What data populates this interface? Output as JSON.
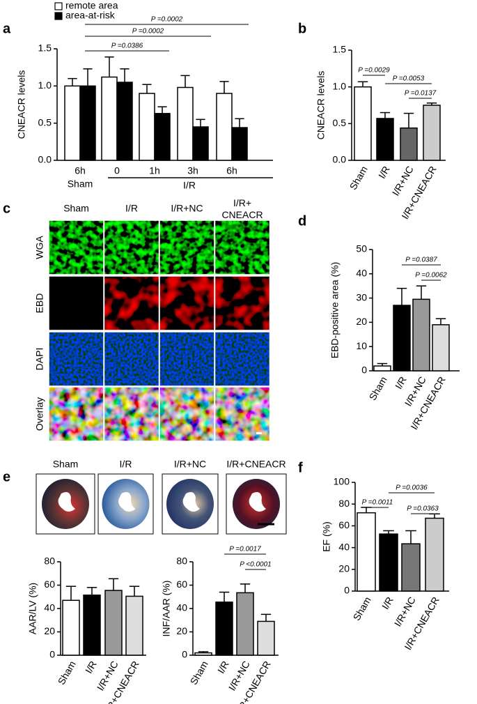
{
  "panel_letters": [
    "a",
    "b",
    "c",
    "d",
    "e",
    "f"
  ],
  "micrographs": {
    "columns": [
      "Sham",
      "I/R",
      "I/R+NC",
      "I/R+\nCNEACR"
    ],
    "rows": [
      "WGA",
      "EBD",
      "DAPI",
      "Overlay"
    ]
  },
  "hearts": {
    "labels": [
      "Sham",
      "I/R",
      "I/R+NC",
      "I/R+CNEACR"
    ]
  },
  "chart_data": [
    {
      "type": "grouped_bar",
      "ylabel": "CNEACR levels",
      "categories": [
        "6h",
        "0",
        "1h",
        "3h",
        "6h"
      ],
      "group_labels": [
        "Sham",
        "I/R"
      ],
      "series": [
        {
          "name": "remote area",
          "color": "#ffffff",
          "values": [
            1.0,
            1.12,
            0.9,
            0.98,
            0.9
          ],
          "errors": [
            0.1,
            0.27,
            0.12,
            0.16,
            0.16
          ]
        },
        {
          "name": "area-at-risk",
          "color": "#000000",
          "values": [
            1.0,
            1.05,
            0.63,
            0.45,
            0.44
          ],
          "errors": [
            0.23,
            0.18,
            0.09,
            0.1,
            0.12
          ]
        }
      ],
      "ylim": [
        0,
        1.5
      ],
      "yticks": [
        {
          "value": 0,
          "label": "0.0"
        },
        0.5,
        {
          "value": 1,
          "label": "1.0"
        },
        1.5
      ],
      "annotations": [
        "P =0.0386",
        "P =0.0002",
        "P =0.0002"
      ]
    },
    {
      "type": "bar",
      "ylabel": "CNEACR levels",
      "categories": [
        "Sham",
        "I/R",
        "I/R+NC",
        "I/R+CNEACR"
      ],
      "values": [
        1.0,
        0.57,
        0.44,
        0.75
      ],
      "errors": [
        0.07,
        0.08,
        0.2,
        0.03
      ],
      "colors": [
        "#ffffff",
        "#000000",
        "#666666",
        "#cccccc"
      ],
      "ylim": [
        0,
        1.5
      ],
      "yticks": [
        {
          "value": 0,
          "label": "0.0"
        },
        0.5,
        {
          "value": 1,
          "label": "1.0"
        },
        1.5
      ],
      "annotations": [
        "P =0.0029",
        "P =0.0053",
        "P =0.0137"
      ]
    },
    {
      "type": "bar",
      "ylabel": "EBD-positive area (%)",
      "categories": [
        "Sham",
        "I/R",
        "I/R+NC",
        "I/R+CNEACR"
      ],
      "values": [
        2,
        27,
        29.5,
        19
      ],
      "errors": [
        1,
        7,
        5.5,
        2.5
      ],
      "colors": [
        "#ffffff",
        "#000000",
        "#999999",
        "#dddddd"
      ],
      "ylim": [
        0,
        50
      ],
      "yticks": [
        0,
        10,
        20,
        30,
        40,
        50
      ],
      "annotations": [
        "P =0.0387",
        "P =0.0062"
      ]
    },
    {
      "type": "bar",
      "ylabel": "AAR/LV (%)",
      "categories": [
        "Sham",
        "I/R",
        "I/R+NC",
        "I/R+CNEACR"
      ],
      "values": [
        47,
        51.5,
        55.5,
        50.5
      ],
      "errors": [
        12,
        6.5,
        10,
        8.5
      ],
      "colors": [
        "#ffffff",
        "#000000",
        "#999999",
        "#dddddd"
      ],
      "ylim": [
        0,
        80
      ],
      "yticks": [
        0,
        20,
        40,
        60,
        80
      ],
      "annotations": []
    },
    {
      "type": "bar",
      "ylabel": "INF/AAR (%)",
      "categories": [
        "Sham",
        "I/R",
        "I/R+NC",
        "I/R+CNEACR"
      ],
      "values": [
        2,
        45.5,
        53.5,
        29
      ],
      "errors": [
        1,
        8.5,
        7.5,
        6
      ],
      "colors": [
        "#ffffff",
        "#000000",
        "#999999",
        "#dddddd"
      ],
      "ylim": [
        0,
        80
      ],
      "yticks": [
        0,
        20,
        40,
        60,
        80
      ],
      "annotations": [
        "P =0.0017",
        "P <0.0001"
      ]
    },
    {
      "type": "bar",
      "ylabel": "EF (%)",
      "categories": [
        "Sham",
        "I/R",
        "I/R+NC",
        "I/R+CNEACR"
      ],
      "values": [
        72,
        52.5,
        43.5,
        67
      ],
      "errors": [
        5,
        3,
        12,
        4
      ],
      "colors": [
        "#ffffff",
        "#000000",
        "#777777",
        "#cccccc"
      ],
      "ylim": [
        0,
        100
      ],
      "yticks": [
        0,
        20,
        40,
        60,
        80,
        100
      ],
      "annotations": [
        "P =0.0011",
        "P =0.0036",
        "P =0.0363"
      ]
    }
  ]
}
